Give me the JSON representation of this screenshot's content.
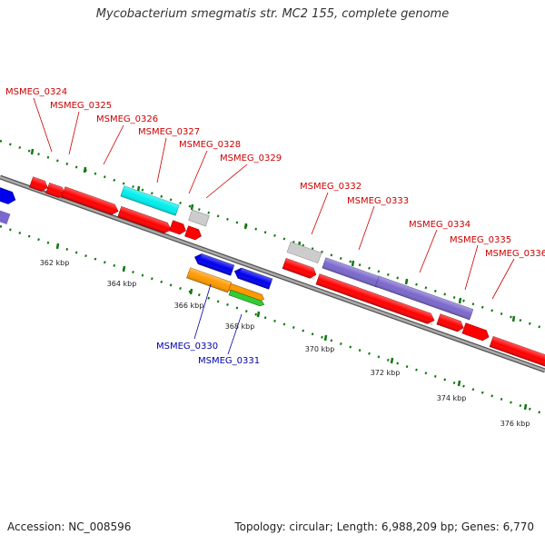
{
  "title": "Mycobacterium smegmatis str. MC2 155, complete genome",
  "footer": {
    "accession": "Accession: NC_008596",
    "summary": "Topology: circular; Length: 6,988,209 bp; Genes: 6,770"
  },
  "scale_labels": [
    "362 kbp",
    "364 kbp",
    "366 kbp",
    "368 kbp",
    "370 kbp",
    "372 kbp",
    "374 kbp",
    "376 kbp"
  ],
  "gene_labels_top": [
    "MSMEG_0324",
    "MSMEG_0325",
    "MSMEG_0326",
    "MSMEG_0327",
    "MSMEG_0328",
    "MSMEG_0329",
    "MSMEG_0332",
    "MSMEG_0333",
    "MSMEG_0334",
    "MSMEG_0335",
    "MSMEG_0336"
  ],
  "gene_labels_bottom": [
    "MSMEG_0330",
    "MSMEG_0331"
  ],
  "colors": {
    "red_gene": "#ff0000",
    "blue_gene": "#0000ee",
    "purple_gene": "#7b68cc",
    "cyan_gene": "#00eeee",
    "orange_gene": "#ff9900",
    "green_gene": "#33cc33",
    "gray_gene": "#cccccc",
    "tick_green": "#117711",
    "backbone": "#888888",
    "label_red": "#cc0000",
    "label_blue": "#0000aa"
  }
}
